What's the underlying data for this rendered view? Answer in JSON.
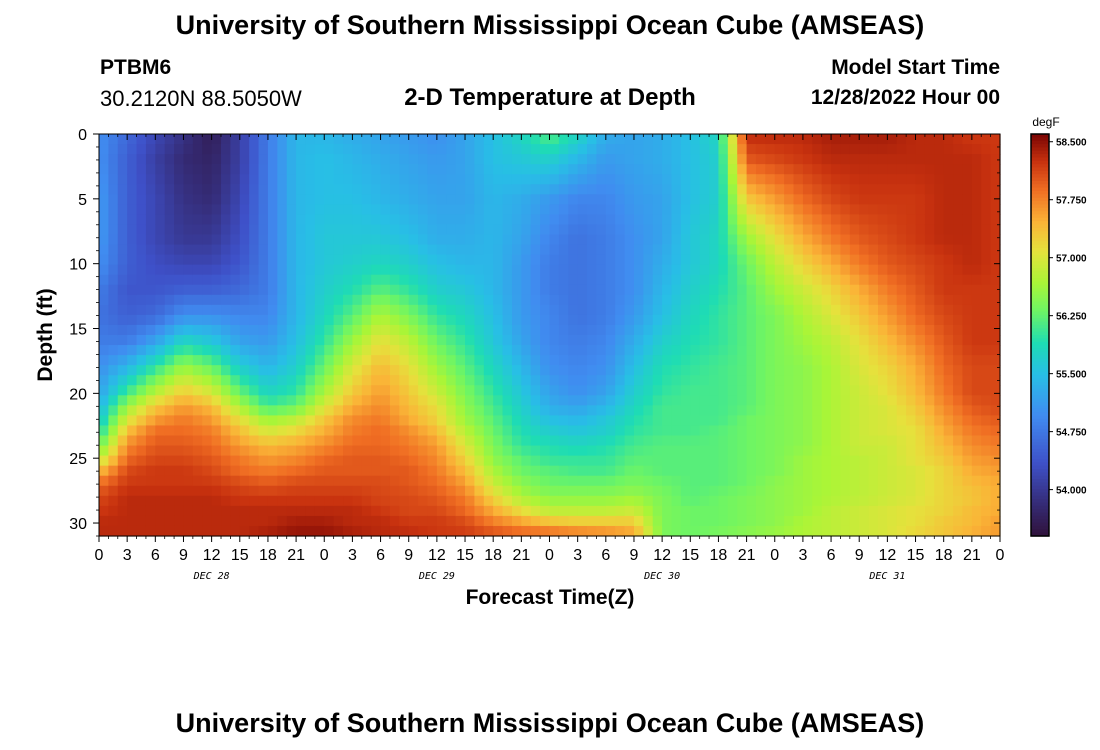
{
  "header": {
    "title": "University of Southern Mississippi Ocean Cube (AMSEAS)",
    "station_id": "PTBM6",
    "station_coords": "30.2120N  88.5050W",
    "subtitle": "2-D Temperature at Depth",
    "model_start_label": "Model Start Time",
    "model_start_value": "12/28/2022 Hour 00"
  },
  "footer": {
    "title": "University of Southern Mississippi Ocean Cube (AMSEAS)"
  },
  "chart_data": {
    "type": "heatmap",
    "title": "2-D Temperature at Depth",
    "xlabel": "Forecast Time(Z)",
    "ylabel": "Depth (ft)",
    "x_range_hours": [
      0,
      96
    ],
    "x_tick_step_hours": 3,
    "x_tick_labels": [
      "0",
      "3",
      "6",
      "9",
      "12",
      "15",
      "18",
      "21",
      "0",
      "3",
      "6",
      "9",
      "12",
      "15",
      "18",
      "21",
      "0",
      "3",
      "6",
      "9",
      "12",
      "15",
      "18",
      "21",
      "0",
      "3",
      "6",
      "9",
      "12",
      "15",
      "18",
      "21",
      "0"
    ],
    "day_labels": [
      {
        "label": "DEC 28",
        "hour": 12
      },
      {
        "label": "DEC 29",
        "hour": 36
      },
      {
        "label": "DEC 30",
        "hour": 60
      },
      {
        "label": "DEC 31",
        "hour": 84
      }
    ],
    "y_range_ft": [
      0,
      31
    ],
    "y_ticks": [
      0,
      5,
      10,
      15,
      20,
      25,
      30
    ],
    "colorbar": {
      "units": "degF",
      "min": 53.4,
      "max": 58.6,
      "tick_labels": [
        "58.500",
        "57.750",
        "57.000",
        "56.250",
        "55.500",
        "54.750",
        "54.000"
      ],
      "tick_values": [
        58.5,
        57.75,
        57.0,
        56.25,
        55.5,
        54.75,
        54.0
      ]
    },
    "control_points": {
      "depth_ft": [
        0,
        2,
        5,
        8,
        10,
        12,
        14,
        16,
        18,
        20,
        21,
        22,
        23,
        24,
        25,
        26,
        27,
        28,
        29,
        30,
        31
      ],
      "columns": [
        {
          "hour": 0,
          "values": [
            55.0,
            55.0,
            55.1,
            55.1,
            55.0,
            54.8,
            54.7,
            54.8,
            55.0,
            55.2,
            55.4,
            55.6,
            55.9,
            56.3,
            56.8,
            57.4,
            57.9,
            58.1,
            58.2,
            58.3,
            58.3
          ]
        },
        {
          "hour": 3,
          "values": [
            54.6,
            54.5,
            54.5,
            54.5,
            54.5,
            54.4,
            54.5,
            54.8,
            55.4,
            56.1,
            56.6,
            57.0,
            57.4,
            57.7,
            57.9,
            58.1,
            58.2,
            58.3,
            58.3,
            58.3,
            58.3
          ]
        },
        {
          "hour": 6,
          "values": [
            54.2,
            54.1,
            54.2,
            54.2,
            54.3,
            54.4,
            54.6,
            55.2,
            56.0,
            56.8,
            57.3,
            57.6,
            57.9,
            58.0,
            58.1,
            58.2,
            58.2,
            58.3,
            58.3,
            58.3,
            58.3
          ]
        },
        {
          "hour": 9,
          "values": [
            53.9,
            53.8,
            53.9,
            54.0,
            54.2,
            54.5,
            55.0,
            55.8,
            56.6,
            57.3,
            57.6,
            57.8,
            57.9,
            58.0,
            58.1,
            58.2,
            58.2,
            58.3,
            58.3,
            58.3,
            58.3
          ]
        },
        {
          "hour": 12,
          "values": [
            53.6,
            53.7,
            53.8,
            54.0,
            54.2,
            54.5,
            55.0,
            55.6,
            56.3,
            57.0,
            57.4,
            57.6,
            57.8,
            57.9,
            58.0,
            58.1,
            58.2,
            58.3,
            58.3,
            58.3,
            58.3
          ]
        },
        {
          "hour": 15,
          "values": [
            54.1,
            54.1,
            54.2,
            54.3,
            54.4,
            54.6,
            54.9,
            55.2,
            55.7,
            56.3,
            56.7,
            57.1,
            57.4,
            57.6,
            57.8,
            57.9,
            58.1,
            58.2,
            58.3,
            58.3,
            58.3
          ]
        },
        {
          "hour": 18,
          "values": [
            54.8,
            54.8,
            54.8,
            54.8,
            54.8,
            54.8,
            54.9,
            55.1,
            55.4,
            55.8,
            56.1,
            56.6,
            57.0,
            57.4,
            57.6,
            57.8,
            58.0,
            58.2,
            58.3,
            58.3,
            58.4
          ]
        },
        {
          "hour": 21,
          "values": [
            55.4,
            55.4,
            55.4,
            55.4,
            55.4,
            55.4,
            55.4,
            55.5,
            55.7,
            56.0,
            56.3,
            56.8,
            57.2,
            57.5,
            57.7,
            57.9,
            58.1,
            58.2,
            58.3,
            58.4,
            58.5
          ]
        },
        {
          "hour": 24,
          "values": [
            55.4,
            55.5,
            55.5,
            55.6,
            55.6,
            55.7,
            55.8,
            56.0,
            56.3,
            56.7,
            57.0,
            57.3,
            57.5,
            57.7,
            57.9,
            58.0,
            58.1,
            58.2,
            58.3,
            58.4,
            58.5
          ]
        },
        {
          "hour": 27,
          "values": [
            55.3,
            55.4,
            55.5,
            55.6,
            55.7,
            55.9,
            56.2,
            56.6,
            57.0,
            57.3,
            57.5,
            57.7,
            57.8,
            57.9,
            58.0,
            58.0,
            58.1,
            58.2,
            58.3,
            58.3,
            58.4
          ]
        },
        {
          "hour": 30,
          "values": [
            55.2,
            55.3,
            55.4,
            55.6,
            55.8,
            56.2,
            56.7,
            57.1,
            57.4,
            57.6,
            57.7,
            57.8,
            57.9,
            57.9,
            58.0,
            58.0,
            58.1,
            58.1,
            58.2,
            58.3,
            58.3
          ]
        },
        {
          "hour": 33,
          "values": [
            55.1,
            55.2,
            55.3,
            55.5,
            55.7,
            56.0,
            56.4,
            56.8,
            57.1,
            57.3,
            57.4,
            57.5,
            57.7,
            57.8,
            57.9,
            58.0,
            58.0,
            58.1,
            58.1,
            58.2,
            58.3
          ]
        },
        {
          "hour": 36,
          "values": [
            55.0,
            55.1,
            55.2,
            55.3,
            55.5,
            55.7,
            56.0,
            56.3,
            56.6,
            56.9,
            57.1,
            57.2,
            57.4,
            57.6,
            57.7,
            57.8,
            57.9,
            58.0,
            58.1,
            58.2,
            58.2
          ]
        },
        {
          "hour": 39,
          "values": [
            55.2,
            55.2,
            55.2,
            55.3,
            55.4,
            55.6,
            55.8,
            56.0,
            56.2,
            56.4,
            56.5,
            56.6,
            56.8,
            57.0,
            57.2,
            57.4,
            57.6,
            57.8,
            57.9,
            58.1,
            58.2
          ]
        },
        {
          "hour": 42,
          "values": [
            55.5,
            55.5,
            55.4,
            55.4,
            55.4,
            55.4,
            55.5,
            55.6,
            55.8,
            56.0,
            56.1,
            56.2,
            56.3,
            56.4,
            56.5,
            56.7,
            56.9,
            57.2,
            57.5,
            57.8,
            58.1
          ]
        },
        {
          "hour": 45,
          "values": [
            55.8,
            55.6,
            55.3,
            55.2,
            55.1,
            55.1,
            55.1,
            55.2,
            55.4,
            55.6,
            55.7,
            55.8,
            55.9,
            56.0,
            56.2,
            56.3,
            56.5,
            56.7,
            57.1,
            57.6,
            58.0
          ]
        },
        {
          "hour": 48,
          "values": [
            56.2,
            55.7,
            55.1,
            54.9,
            54.8,
            54.8,
            54.9,
            54.9,
            55.0,
            55.2,
            55.3,
            55.5,
            55.7,
            55.9,
            56.0,
            56.2,
            56.3,
            56.5,
            56.8,
            57.4,
            58.0
          ]
        },
        {
          "hour": 51,
          "values": [
            55.8,
            55.4,
            54.9,
            54.7,
            54.7,
            54.7,
            54.7,
            54.8,
            54.9,
            55.0,
            55.2,
            55.4,
            55.6,
            55.8,
            56.0,
            56.1,
            56.3,
            56.5,
            56.8,
            57.3,
            57.9
          ]
        },
        {
          "hour": 54,
          "values": [
            55.3,
            55.1,
            54.9,
            54.8,
            54.8,
            54.8,
            54.8,
            54.9,
            55.0,
            55.2,
            55.4,
            55.6,
            55.7,
            55.9,
            56.0,
            56.1,
            56.3,
            56.5,
            56.8,
            57.3,
            57.8
          ]
        },
        {
          "hour": 57,
          "values": [
            55.2,
            55.2,
            55.1,
            55.0,
            55.0,
            55.0,
            55.1,
            55.3,
            55.5,
            55.7,
            55.8,
            55.9,
            56.0,
            56.1,
            56.2,
            56.3,
            56.4,
            56.6,
            56.9,
            57.3,
            57.6
          ]
        },
        {
          "hour": 60,
          "values": [
            55.3,
            55.3,
            55.2,
            55.2,
            55.3,
            55.4,
            55.5,
            55.7,
            55.9,
            56.0,
            56.1,
            56.1,
            56.1,
            56.2,
            56.2,
            56.2,
            56.3,
            56.4,
            56.4,
            56.4,
            56.4
          ]
        },
        {
          "hour": 63,
          "values": [
            55.5,
            55.5,
            55.5,
            55.6,
            55.6,
            55.7,
            55.8,
            55.9,
            56.0,
            56.1,
            56.1,
            56.1,
            56.1,
            56.2,
            56.2,
            56.2,
            56.2,
            56.2,
            56.3,
            56.3,
            56.3
          ]
        },
        {
          "hour": 66,
          "values": [
            55.8,
            55.7,
            55.7,
            55.8,
            55.8,
            55.9,
            56.0,
            56.0,
            56.1,
            56.1,
            56.1,
            56.1,
            56.2,
            56.2,
            56.2,
            56.2,
            56.2,
            56.3,
            56.3,
            56.3,
            56.4
          ]
        },
        {
          "hour": 69,
          "values": [
            58.3,
            58.0,
            57.3,
            56.6,
            56.3,
            56.2,
            56.2,
            56.2,
            56.2,
            56.2,
            56.2,
            56.3,
            56.3,
            56.3,
            56.3,
            56.3,
            56.3,
            56.4,
            56.4,
            56.4,
            56.5
          ]
        },
        {
          "hour": 72,
          "values": [
            58.3,
            58.1,
            57.6,
            57.1,
            56.8,
            56.6,
            56.4,
            56.4,
            56.4,
            56.4,
            56.4,
            56.4,
            56.4,
            56.4,
            56.4,
            56.4,
            56.5,
            56.5,
            56.5,
            56.5,
            56.6
          ]
        },
        {
          "hour": 75,
          "values": [
            58.3,
            58.2,
            57.9,
            57.5,
            57.2,
            56.9,
            56.7,
            56.6,
            56.5,
            56.5,
            56.5,
            56.5,
            56.5,
            56.5,
            56.6,
            56.6,
            56.6,
            56.6,
            56.6,
            56.7,
            56.7
          ]
        },
        {
          "hour": 78,
          "values": [
            58.4,
            58.3,
            58.1,
            57.8,
            57.5,
            57.2,
            57.0,
            56.8,
            56.7,
            56.7,
            56.7,
            56.7,
            56.7,
            56.7,
            56.7,
            56.7,
            56.7,
            56.7,
            56.8,
            56.8,
            56.8
          ]
        },
        {
          "hour": 81,
          "values": [
            58.4,
            58.3,
            58.2,
            58.0,
            57.8,
            57.5,
            57.3,
            57.1,
            57.0,
            56.9,
            56.9,
            56.9,
            56.9,
            56.9,
            56.8,
            56.8,
            56.8,
            56.8,
            56.9,
            56.9,
            56.9
          ]
        },
        {
          "hour": 84,
          "values": [
            58.4,
            58.3,
            58.2,
            58.1,
            58.0,
            57.8,
            57.6,
            57.4,
            57.2,
            57.1,
            57.0,
            57.0,
            57.0,
            56.9,
            56.9,
            56.9,
            56.9,
            56.9,
            57.0,
            57.0,
            57.0
          ]
        },
        {
          "hour": 87,
          "values": [
            58.3,
            58.3,
            58.2,
            58.2,
            58.1,
            58.0,
            57.9,
            57.7,
            57.5,
            57.4,
            57.3,
            57.2,
            57.1,
            57.1,
            57.1,
            57.0,
            57.0,
            57.0,
            57.1,
            57.1,
            57.2
          ]
        },
        {
          "hour": 90,
          "values": [
            58.3,
            58.3,
            58.3,
            58.3,
            58.2,
            58.2,
            58.1,
            58.0,
            57.9,
            57.8,
            57.7,
            57.6,
            57.5,
            57.4,
            57.3,
            57.2,
            57.2,
            57.2,
            57.2,
            57.3,
            57.3
          ]
        },
        {
          "hour": 93,
          "values": [
            58.2,
            58.3,
            58.3,
            58.3,
            58.3,
            58.2,
            58.2,
            58.2,
            58.1,
            58.1,
            58.0,
            57.9,
            57.8,
            57.7,
            57.6,
            57.5,
            57.4,
            57.3,
            57.4,
            57.4,
            57.5
          ]
        },
        {
          "hour": 96,
          "values": [
            58.2,
            58.2,
            58.2,
            58.2,
            58.2,
            58.2,
            58.2,
            58.2,
            58.1,
            58.1,
            58.1,
            58.0,
            57.9,
            57.8,
            57.7,
            57.6,
            57.5,
            57.5,
            57.5,
            57.6,
            57.6
          ]
        }
      ]
    }
  }
}
